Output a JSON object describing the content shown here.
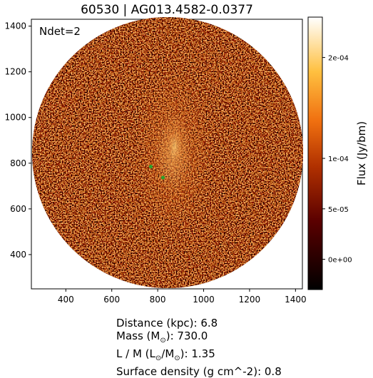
{
  "title": "60530 | AG013.4582-0.0377",
  "annotation": "Ndet=2",
  "colorbar": {
    "label": "Flux (Jy/bm)",
    "ticks": [
      "2e-04",
      "1e-04",
      "5e-05",
      "0e+00"
    ],
    "tick_values": [
      0.0002,
      0.0001,
      5e-05,
      0.0
    ],
    "range": [
      -3e-05,
      0.00024
    ],
    "colormap": "afmhot"
  },
  "axes": {
    "x_ticks": [
      400,
      600,
      800,
      1000,
      1200,
      1400
    ],
    "y_ticks": [
      400,
      600,
      800,
      1000,
      1200,
      1400
    ],
    "x_range": [
      250,
      1430
    ],
    "y_range": [
      250,
      1430
    ]
  },
  "markers": {
    "color": "#2ca02c",
    "points": [
      {
        "x": 770,
        "y": 785
      },
      {
        "x": 823,
        "y": 737
      }
    ]
  },
  "stats": {
    "distance_label": "Distance (kpc)",
    "distance_value": "6.8",
    "mass_label": "Mass (M",
    "mass_value": "730.0",
    "lm_label": "L / M (L",
    "lm_value": "1.35",
    "surface_label": "Surface density (g cm^-2)",
    "surface_value": "0.8"
  }
}
